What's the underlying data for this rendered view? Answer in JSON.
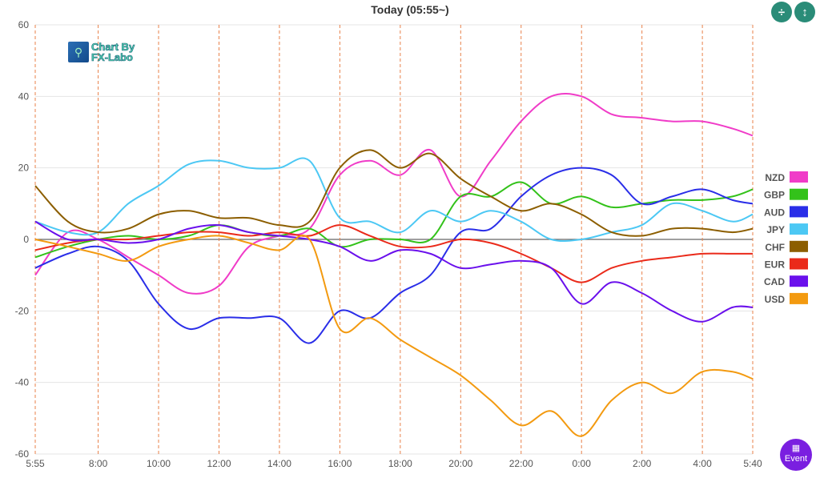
{
  "header": {
    "title": "Today  (05:55~)"
  },
  "logo": {
    "line1": "Chart By",
    "line2": "FX-Labo"
  },
  "buttons": {
    "collapse_icon": "compress-vertical-icon",
    "expand_icon": "expand-vertical-icon",
    "event_label": "Event",
    "event_icon": "calendar-icon"
  },
  "chart_data": {
    "type": "line",
    "title": "Today  (05:55~)",
    "xlabel": "",
    "ylabel": "",
    "ylim": [
      -60,
      60
    ],
    "yticks": [
      60,
      40,
      20,
      0,
      -20,
      -40,
      -60
    ],
    "xlim": [
      0,
      23.75
    ],
    "xtick_positions": [
      0,
      2.083,
      4.083,
      6.083,
      8.083,
      10.083,
      12.083,
      14.083,
      16.083,
      18.083,
      20.083,
      22.083,
      23.75
    ],
    "xtick_labels": [
      "5:55",
      "8:00",
      "10:00",
      "12:00",
      "14:00",
      "16:00",
      "18:00",
      "20:00",
      "22:00",
      "0:00",
      "2:00",
      "4:00",
      "5:40"
    ],
    "grid": true,
    "legend_position": "right",
    "x": [
      0,
      1.08,
      2.08,
      3.08,
      4.08,
      5.08,
      6.08,
      7.08,
      8.08,
      9.08,
      10.08,
      11.08,
      12.08,
      13.08,
      14.08,
      15.08,
      16.08,
      17.08,
      18.08,
      19.08,
      20.08,
      21.08,
      22.08,
      23.08,
      23.75
    ],
    "series": [
      {
        "name": "NZD",
        "color": "#f03cc8",
        "values": [
          -10,
          2,
          0,
          -5,
          -10,
          -15,
          -13,
          -2,
          1,
          3,
          18,
          22,
          18,
          25,
          12,
          22,
          33,
          40,
          40,
          35,
          34,
          33,
          33,
          31,
          29
        ]
      },
      {
        "name": "GBP",
        "color": "#33c21a",
        "values": [
          -5,
          -2,
          0,
          1,
          0,
          1,
          4,
          2,
          1,
          3,
          -2,
          0,
          0,
          0,
          12,
          12,
          16,
          10,
          12,
          9,
          10,
          11,
          11,
          12,
          14
        ]
      },
      {
        "name": "AUD",
        "color": "#2a2ee8",
        "values": [
          -8,
          -4,
          -2,
          -6,
          -18,
          -25,
          -22,
          -22,
          -22,
          -29,
          -20,
          -22,
          -15,
          -10,
          2,
          3,
          12,
          18,
          20,
          18,
          10,
          12,
          14,
          11,
          10
        ]
      },
      {
        "name": "JPY",
        "color": "#4cc8f4",
        "values": [
          5,
          2,
          2,
          10,
          15,
          21,
          22,
          20,
          20,
          22,
          6,
          5,
          2,
          8,
          5,
          8,
          5,
          0,
          0,
          2,
          4,
          10,
          8,
          5,
          7
        ]
      },
      {
        "name": "CHF",
        "color": "#8c5e00",
        "values": [
          15,
          5,
          2,
          3,
          7,
          8,
          6,
          6,
          4,
          5,
          20,
          25,
          20,
          24,
          17,
          12,
          8,
          10,
          7,
          2,
          1,
          3,
          3,
          2,
          3
        ]
      },
      {
        "name": "EUR",
        "color": "#ea2a1a",
        "values": [
          -3,
          -1,
          0,
          0,
          1,
          2,
          2,
          1,
          2,
          1,
          4,
          1,
          -2,
          -2,
          0,
          -1,
          -4,
          -8,
          -12,
          -8,
          -6,
          -5,
          -4,
          -4,
          -4
        ]
      },
      {
        "name": "CAD",
        "color": "#6a10ec",
        "values": [
          5,
          0,
          0,
          -1,
          0,
          3,
          4,
          2,
          1,
          0,
          -2,
          -6,
          -3,
          -4,
          -8,
          -7,
          -6,
          -8,
          -18,
          -12,
          -15,
          -20,
          -23,
          -19,
          -19
        ]
      },
      {
        "name": "USD",
        "color": "#f39a10",
        "values": [
          0,
          -2,
          -4,
          -6,
          -2,
          0,
          1,
          -1,
          -3,
          0,
          -25,
          -22,
          -28,
          -33,
          -38,
          -45,
          -52,
          -48,
          -55,
          -45,
          -40,
          -43,
          -37,
          -37,
          -39
        ]
      }
    ]
  }
}
